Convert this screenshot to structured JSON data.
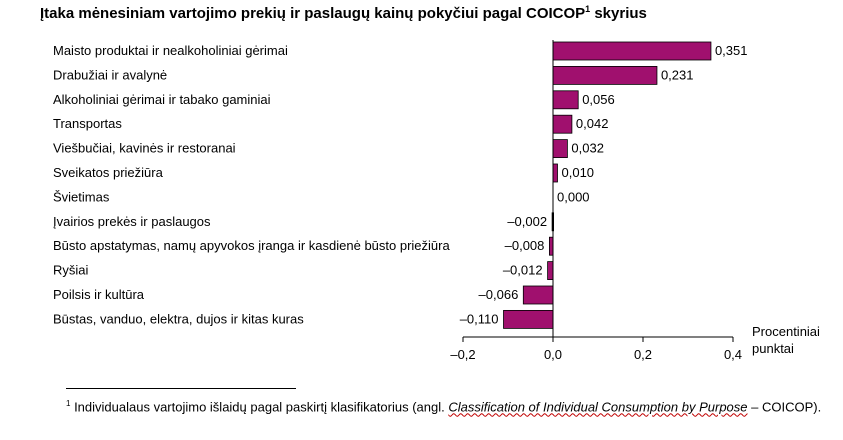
{
  "title": {
    "text": "Įtaka mėnesiniam vartojimo prekių ir paslaugų kainų pokyčiui pagal COICOP",
    "superscript": "1",
    "suffix": " skyrius"
  },
  "chart_data": {
    "type": "bar",
    "orientation": "horizontal",
    "categories": [
      "Maisto produktai ir nealkoholiniai  gėrimai",
      "Drabužiai ir avalynė",
      "Alkoholiniai gėrimai ir tabako gaminiai",
      "Transportas",
      "Viešbučiai,  kavinės  ir restoranai",
      "Sveikatos priežiūra",
      "Švietimas",
      "Įvairios prekės ir paslaugos",
      "Būsto apstatymas,  namų apyvokos įranga ir kasdienė būsto priežiūra",
      "Ryšiai",
      "Poilsis ir kultūra",
      "Būstas, vanduo, elektra, dujos ir kitas kuras"
    ],
    "values": [
      0.351,
      0.231,
      0.056,
      0.042,
      0.032,
      0.01,
      0.0,
      -0.002,
      -0.008,
      -0.012,
      -0.066,
      -0.11
    ],
    "value_labels": [
      "0,351",
      "0,231",
      "0,056",
      "0,042",
      "0,032",
      "0,010",
      "0,000",
      "–0,002",
      "–0,008",
      "–0,012",
      "–0,066",
      "–0,110"
    ],
    "xlim": [
      -0.2,
      0.4
    ],
    "xticks": [
      -0.2,
      0.0,
      0.2,
      0.4
    ],
    "xtick_labels": [
      "–0,2",
      "0,0",
      "0,2",
      "0,4"
    ],
    "xlabel_lines": [
      "Procentiniai",
      "punktai"
    ],
    "grid": false,
    "bar_color": "#a0106e"
  },
  "footnote": {
    "marker": "1",
    "text_before": " Individualaus  vartojimo  išlaidų  pagal  paskirtį  klasifikatorius  (angl. ",
    "italic": "Classification of Individual Consumption by Purpose",
    "text_after": " – COICOP)."
  }
}
